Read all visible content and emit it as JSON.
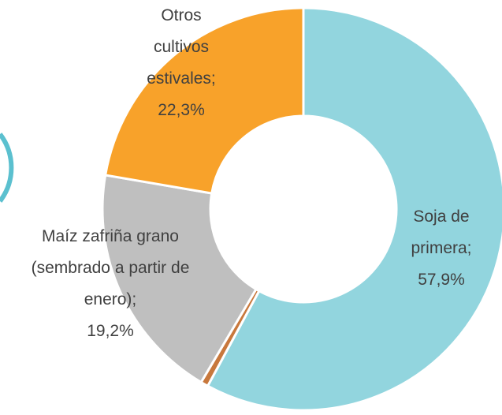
{
  "chart_data": {
    "type": "pie",
    "categories": [
      "Soja de primera",
      null,
      "Maíz zafriña grano (sembrado a partir de enero)",
      "Otros cultivos estivales"
    ],
    "values": [
      57.9,
      0.6,
      19.2,
      22.3
    ],
    "value_labels": [
      "57,9%",
      null,
      "19,2%",
      "22,3%"
    ],
    "colors": [
      "#92d5de",
      "#c8783c",
      "#bfbfbf",
      "#f8a22a"
    ],
    "separator": ";",
    "donut": true
  }
}
